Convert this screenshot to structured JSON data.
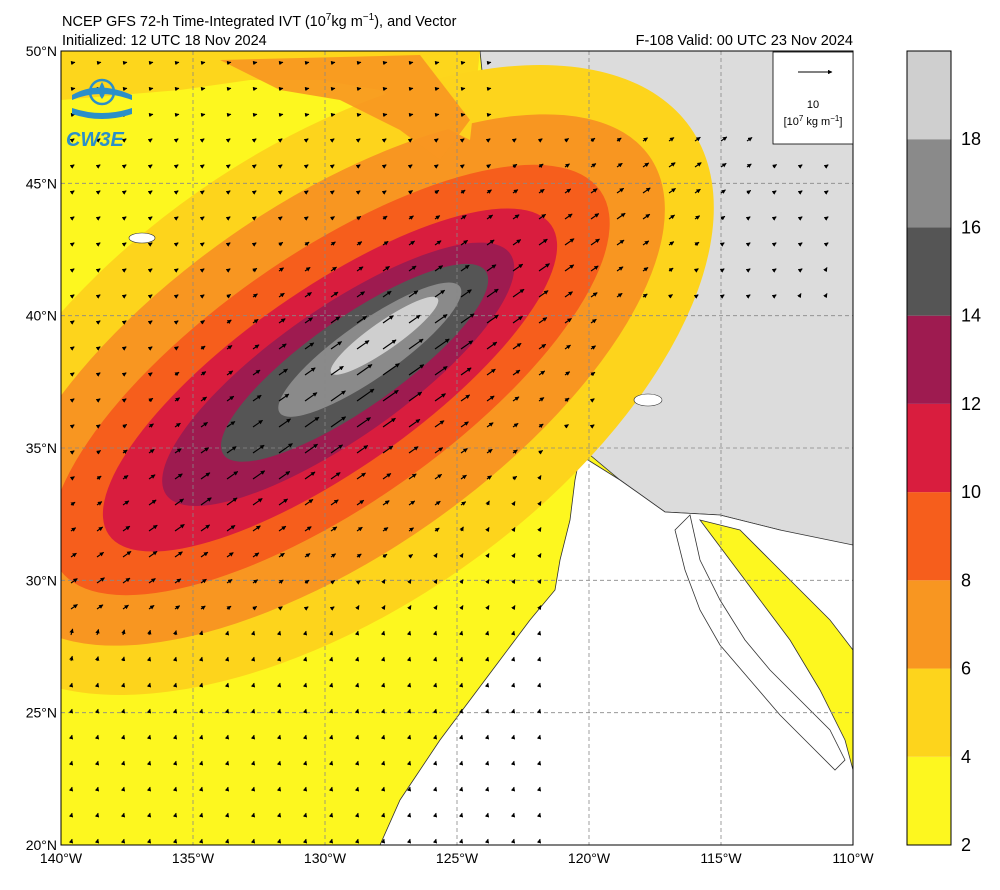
{
  "header": {
    "title_main": "NCEP GFS 72-h Time-Integrated IVT (10",
    "title_sup": "7",
    "title_rest": "kg m",
    "title_sup2": "−1",
    "title_end": "), and Vector",
    "initialized": "Initialized: 12 UTC 18 Nov 2024",
    "valid": "F-108  Valid: 00 UTC 23 Nov 2024"
  },
  "logo": {
    "text": "CW3E",
    "icon": "water-drop-icon"
  },
  "vector_key": {
    "value": "10",
    "unit_a": "[10",
    "unit_sup": "7",
    "unit_b": " kg m",
    "unit_sup2": "−1",
    "unit_c": "]"
  },
  "axes": {
    "lat_labels": [
      "50°N",
      "45°N",
      "40°N",
      "35°N",
      "30°N",
      "25°N",
      "20°N"
    ],
    "lon_labels": [
      "140°W",
      "135°W",
      "130°W",
      "125°W",
      "120°W",
      "115°W",
      "110°W"
    ],
    "lat_values": [
      50,
      45,
      40,
      35,
      30,
      25,
      20
    ],
    "lon_values": [
      -140,
      -135,
      -130,
      -125,
      -120,
      -115,
      -110
    ]
  },
  "colorbar": {
    "labels": [
      "18",
      "16",
      "14",
      "12",
      "10",
      "8",
      "6",
      "4",
      "2"
    ],
    "levels": [
      2,
      4,
      6,
      8,
      10,
      12,
      14,
      16,
      18,
      20
    ],
    "colors": [
      "#fdf71f",
      "#fdd41c",
      "#f89621",
      "#f65e1c",
      "#d91d3e",
      "#9e1b50",
      "#555555",
      "#8a8a8a",
      "#cfcfcf"
    ]
  },
  "colors": {
    "ocean_base": "#fdf71f",
    "land": "#dcdcdc",
    "mexico": "#ffffff",
    "grid": "#888888"
  }
}
